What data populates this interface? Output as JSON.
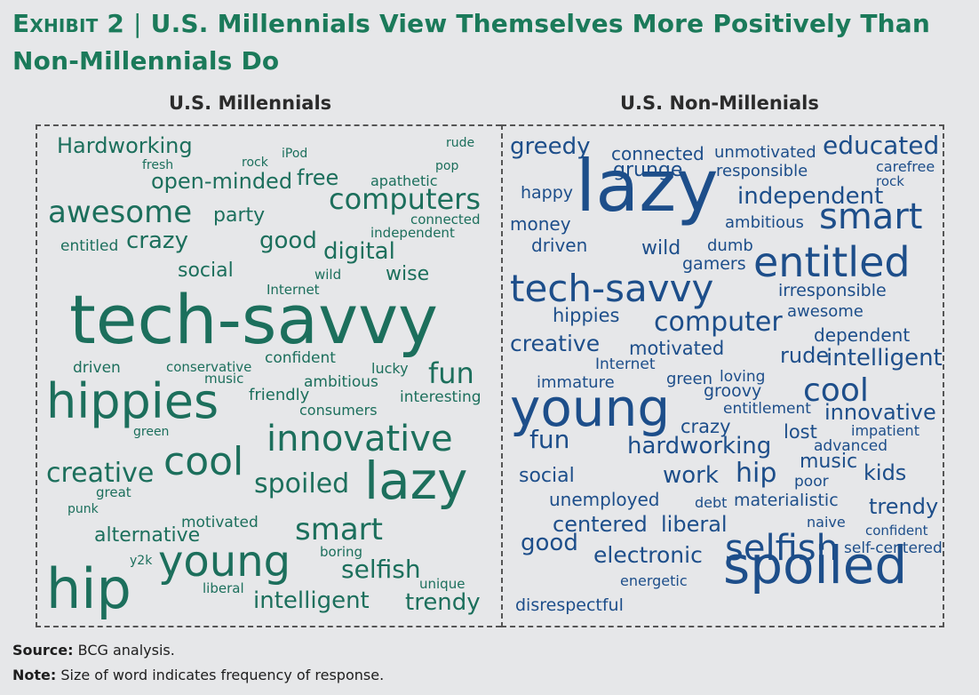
{
  "title": {
    "exhibit": "Exhibit 2",
    "separator": "|",
    "text": "U.S. Millennials View Themselves More Positively Than Non-Millennials Do"
  },
  "footer": {
    "source_label": "Source:",
    "source_text": "BCG analysis.",
    "note_label": "Note:",
    "note_text": "Size of word indicates frequency of response."
  },
  "colors": {
    "title": "#1b7a5a",
    "left_words": "#1c6f5c",
    "right_words": "#1d4e8a",
    "background": "#e6e7e9"
  },
  "chart_data": [
    {
      "type": "wordcloud",
      "title": "U.S. Millennials",
      "words": [
        {
          "text": "Hardworking",
          "weight": 24
        },
        {
          "text": "iPod",
          "weight": 14
        },
        {
          "text": "rude",
          "weight": 14
        },
        {
          "text": "fresh",
          "weight": 14
        },
        {
          "text": "rock",
          "weight": 14
        },
        {
          "text": "pop",
          "weight": 14
        },
        {
          "text": "open-minded",
          "weight": 24
        },
        {
          "text": "free",
          "weight": 24
        },
        {
          "text": "apathetic",
          "weight": 16
        },
        {
          "text": "computers",
          "weight": 32
        },
        {
          "text": "awesome",
          "weight": 34
        },
        {
          "text": "party",
          "weight": 22
        },
        {
          "text": "connected",
          "weight": 15
        },
        {
          "text": "independent",
          "weight": 15
        },
        {
          "text": "entitled",
          "weight": 17
        },
        {
          "text": "crazy",
          "weight": 26
        },
        {
          "text": "good",
          "weight": 26
        },
        {
          "text": "digital",
          "weight": 26
        },
        {
          "text": "social",
          "weight": 22
        },
        {
          "text": "wild",
          "weight": 15
        },
        {
          "text": "wise",
          "weight": 22
        },
        {
          "text": "Internet",
          "weight": 15
        },
        {
          "text": "tech-savvy",
          "weight": 76
        },
        {
          "text": "driven",
          "weight": 17
        },
        {
          "text": "conservative",
          "weight": 15
        },
        {
          "text": "confident",
          "weight": 17
        },
        {
          "text": "lucky",
          "weight": 16
        },
        {
          "text": "fun",
          "weight": 32
        },
        {
          "text": "music",
          "weight": 15
        },
        {
          "text": "ambitious",
          "weight": 17
        },
        {
          "text": "hippies",
          "weight": 54
        },
        {
          "text": "friendly",
          "weight": 18
        },
        {
          "text": "interesting",
          "weight": 17
        },
        {
          "text": "consumers",
          "weight": 16
        },
        {
          "text": "green",
          "weight": 14
        },
        {
          "text": "innovative",
          "weight": 40
        },
        {
          "text": "cool",
          "weight": 44
        },
        {
          "text": "creative",
          "weight": 30
        },
        {
          "text": "great",
          "weight": 15
        },
        {
          "text": "spoiled",
          "weight": 30
        },
        {
          "text": "lazy",
          "weight": 58
        },
        {
          "text": "punk",
          "weight": 14
        },
        {
          "text": "motivated",
          "weight": 17
        },
        {
          "text": "smart",
          "weight": 34
        },
        {
          "text": "alternative",
          "weight": 22
        },
        {
          "text": "boring",
          "weight": 15
        },
        {
          "text": "y2k",
          "weight": 14
        },
        {
          "text": "young",
          "weight": 48
        },
        {
          "text": "selfish",
          "weight": 28
        },
        {
          "text": "hip",
          "weight": 62
        },
        {
          "text": "unique",
          "weight": 15
        },
        {
          "text": "liberal",
          "weight": 15
        },
        {
          "text": "intelligent",
          "weight": 26
        },
        {
          "text": "trendy",
          "weight": 26
        }
      ]
    },
    {
      "type": "wordcloud",
      "title": "U.S. Non-Millenials",
      "words": [
        {
          "text": "greedy",
          "weight": 26
        },
        {
          "text": "connected",
          "weight": 20
        },
        {
          "text": "unmotivated",
          "weight": 18
        },
        {
          "text": "educated",
          "weight": 28
        },
        {
          "text": "grunge",
          "weight": 22
        },
        {
          "text": "responsible",
          "weight": 18
        },
        {
          "text": "carefree",
          "weight": 16
        },
        {
          "text": "rock",
          "weight": 15
        },
        {
          "text": "happy",
          "weight": 19
        },
        {
          "text": "lazy",
          "weight": 80
        },
        {
          "text": "independent",
          "weight": 26
        },
        {
          "text": "money",
          "weight": 20
        },
        {
          "text": "ambitious",
          "weight": 18
        },
        {
          "text": "smart",
          "weight": 40
        },
        {
          "text": "driven",
          "weight": 20
        },
        {
          "text": "wild",
          "weight": 22
        },
        {
          "text": "dumb",
          "weight": 18
        },
        {
          "text": "gamers",
          "weight": 19
        },
        {
          "text": "entitled",
          "weight": 46
        },
        {
          "text": "tech-savvy",
          "weight": 42
        },
        {
          "text": "irresponsible",
          "weight": 19
        },
        {
          "text": "hippies",
          "weight": 21
        },
        {
          "text": "computer",
          "weight": 30
        },
        {
          "text": "awesome",
          "weight": 18
        },
        {
          "text": "creative",
          "weight": 25
        },
        {
          "text": "motivated",
          "weight": 21
        },
        {
          "text": "dependent",
          "weight": 20
        },
        {
          "text": "rude",
          "weight": 24
        },
        {
          "text": "Internet",
          "weight": 17
        },
        {
          "text": "intelligent",
          "weight": 26
        },
        {
          "text": "immature",
          "weight": 18
        },
        {
          "text": "green",
          "weight": 18
        },
        {
          "text": "loving",
          "weight": 17
        },
        {
          "text": "cool",
          "weight": 36
        },
        {
          "text": "groovy",
          "weight": 19
        },
        {
          "text": "young",
          "weight": 58
        },
        {
          "text": "entitlement",
          "weight": 17
        },
        {
          "text": "innovative",
          "weight": 24
        },
        {
          "text": "crazy",
          "weight": 21
        },
        {
          "text": "fun",
          "weight": 28
        },
        {
          "text": "lost",
          "weight": 21
        },
        {
          "text": "impatient",
          "weight": 16
        },
        {
          "text": "advanced",
          "weight": 17
        },
        {
          "text": "hardworking",
          "weight": 26
        },
        {
          "text": "music",
          "weight": 22
        },
        {
          "text": "social",
          "weight": 22
        },
        {
          "text": "work",
          "weight": 26
        },
        {
          "text": "hip",
          "weight": 30
        },
        {
          "text": "poor",
          "weight": 17
        },
        {
          "text": "kids",
          "weight": 24
        },
        {
          "text": "unemployed",
          "weight": 20
        },
        {
          "text": "debt",
          "weight": 16
        },
        {
          "text": "materialistic",
          "weight": 19
        },
        {
          "text": "trendy",
          "weight": 24
        },
        {
          "text": "naive",
          "weight": 16
        },
        {
          "text": "confident",
          "weight": 15
        },
        {
          "text": "centered",
          "weight": 24
        },
        {
          "text": "liberal",
          "weight": 24
        },
        {
          "text": "good",
          "weight": 26
        },
        {
          "text": "electronic",
          "weight": 25
        },
        {
          "text": "selfish",
          "weight": 40
        },
        {
          "text": "self-centered",
          "weight": 17
        },
        {
          "text": "energetic",
          "weight": 16
        },
        {
          "text": "spoiled",
          "weight": 58
        },
        {
          "text": "disrespectful",
          "weight": 19
        }
      ]
    }
  ]
}
